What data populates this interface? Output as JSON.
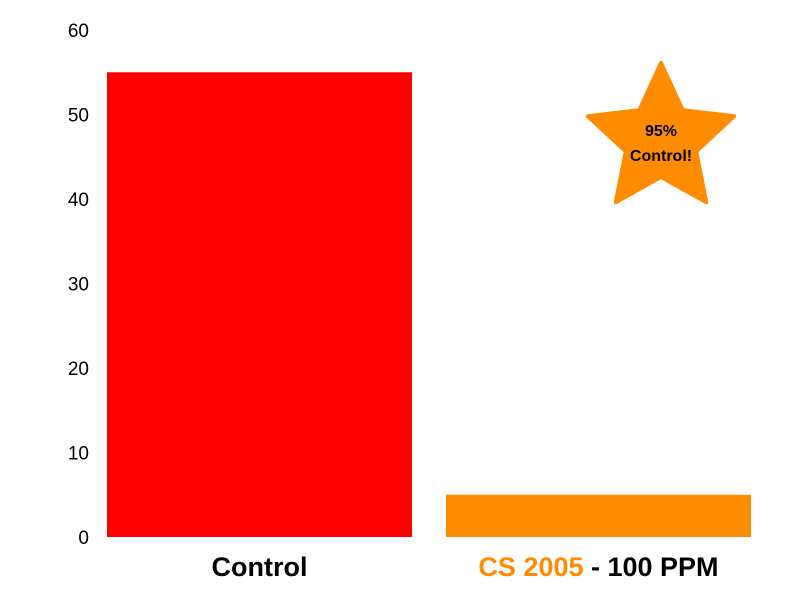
{
  "chart_data": {
    "type": "bar",
    "categories": [
      "Control",
      "CS 2005 - 100 PPM"
    ],
    "category_labels": [
      {
        "parts": [
          {
            "text": "Control",
            "color": "#000000"
          }
        ]
      },
      {
        "parts": [
          {
            "text": "CS 2005",
            "color": "#ff8c00"
          },
          {
            "text": " - 100 PPM",
            "color": "#000000"
          }
        ]
      }
    ],
    "values": [
      55,
      5
    ],
    "bar_colors": [
      "#ff0000",
      "#ff8c00"
    ],
    "ylim": [
      0,
      60
    ],
    "yticks": [
      0,
      10,
      20,
      30,
      40,
      50,
      60
    ],
    "grid": false,
    "title": "",
    "xlabel": "",
    "ylabel": "",
    "annotation": {
      "shape": "star",
      "color": "#ff8c00",
      "line1": "95%",
      "line2": "Control!"
    }
  }
}
